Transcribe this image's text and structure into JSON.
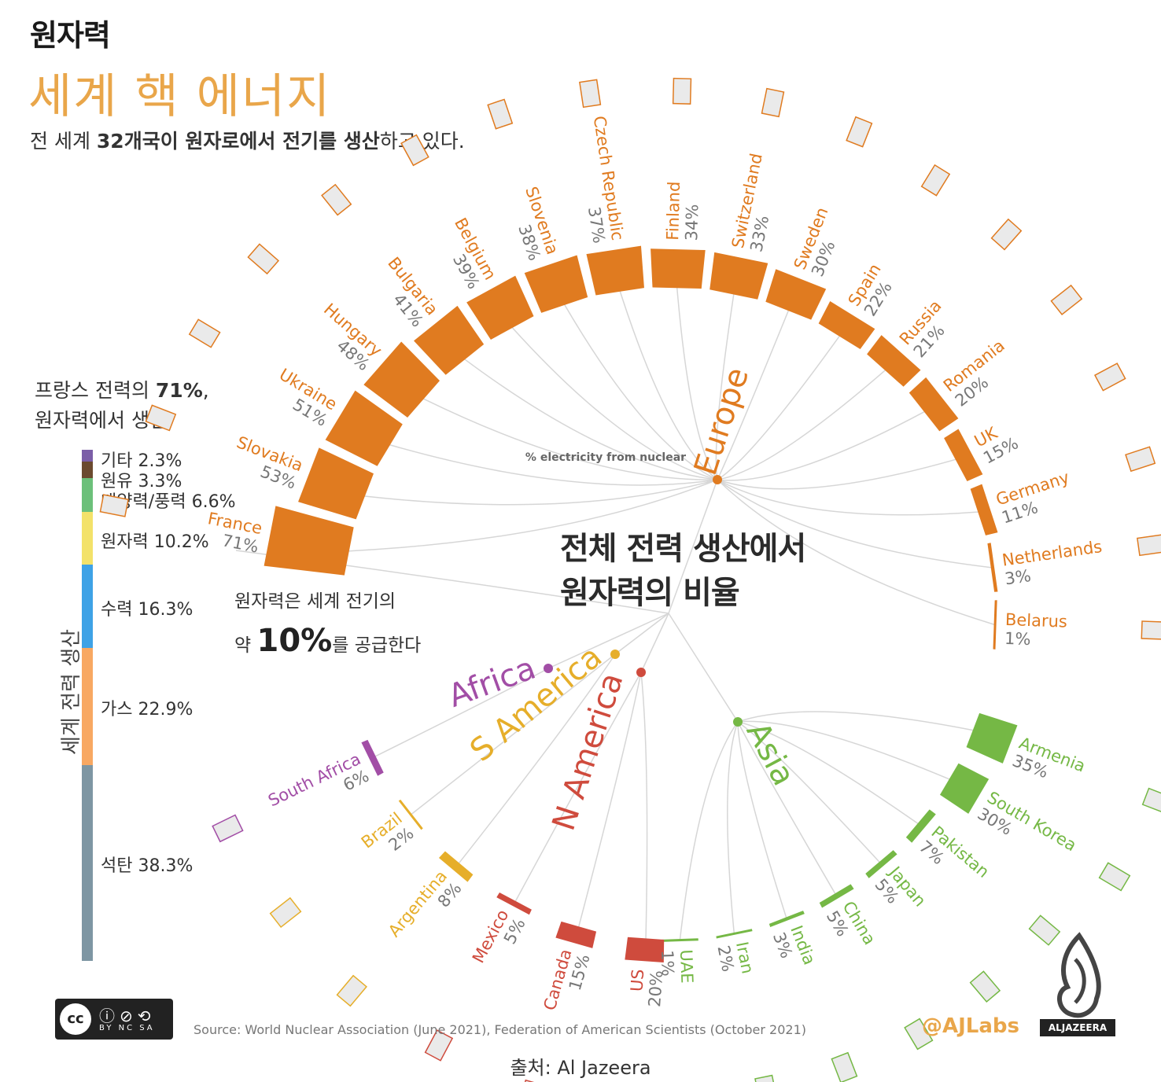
{
  "header": {
    "kicker": "원자력",
    "title": "세계 핵 에너지",
    "subtitle_pre": "전 세계 ",
    "subtitle_bold": "32개국이 원자로에서 전기를 생산",
    "subtitle_post": "하고 있다."
  },
  "france_note": {
    "line1_pre": "프랑스 전력의 ",
    "line1_bold": "71%",
    "line1_post": ",",
    "line2": "원자력에서 생산"
  },
  "energy_mix": {
    "label": "세계 전력 생산",
    "items": [
      {
        "label": "기타 2.3%",
        "value": 2.3,
        "color": "#7b5ea7"
      },
      {
        "label": "원유 3.3%",
        "value": 3.3,
        "color": "#6b4a2f"
      },
      {
        "label": "태양력/풍력 6.6%",
        "value": 6.6,
        "color": "#6cc07a"
      },
      {
        "label": "원자력 10.2%",
        "value": 10.2,
        "color": "#f3e26a"
      },
      {
        "label": "수력 16.3%",
        "value": 16.3,
        "color": "#3ea2e6"
      },
      {
        "label": "가스 22.9%",
        "value": 22.9,
        "color": "#f8a862"
      },
      {
        "label": "석탄 38.3%",
        "value": 38.3,
        "color": "#7e96a3"
      }
    ]
  },
  "supply_note": {
    "line1": "원자력은 세계 전기의",
    "prefix": "약 ",
    "big": "10%",
    "suffix": "를 공급한다"
  },
  "center_title": {
    "line1": "전체 전력 생산에서",
    "line2": "원자력의 비율"
  },
  "chart_data": {
    "type": "radial-bar",
    "axis_label": "% electricity from nuclear",
    "regions": [
      {
        "name": "Europe",
        "color": "#e07b20"
      },
      {
        "name": "Africa",
        "color": "#a24ea6"
      },
      {
        "name": "S America",
        "color": "#e6ae2a"
      },
      {
        "name": "N America",
        "color": "#cf4b3d"
      },
      {
        "name": "Asia",
        "color": "#75b845"
      }
    ],
    "countries": [
      {
        "name": "France",
        "value": 71,
        "label": "71%",
        "region": "Europe"
      },
      {
        "name": "Slovakia",
        "value": 53,
        "label": "53%",
        "region": "Europe"
      },
      {
        "name": "Ukraine",
        "value": 51,
        "label": "51%",
        "region": "Europe"
      },
      {
        "name": "Hungary",
        "value": 48,
        "label": "48%",
        "region": "Europe"
      },
      {
        "name": "Bulgaria",
        "value": 41,
        "label": "41%",
        "region": "Europe"
      },
      {
        "name": "Belgium",
        "value": 39,
        "label": "39%",
        "region": "Europe"
      },
      {
        "name": "Slovenia",
        "value": 38,
        "label": "38%",
        "region": "Europe"
      },
      {
        "name": "Czech Republic",
        "value": 37,
        "label": "37%",
        "region": "Europe"
      },
      {
        "name": "Finland",
        "value": 34,
        "label": "34%",
        "region": "Europe"
      },
      {
        "name": "Switzerland",
        "value": 33,
        "label": "33%",
        "region": "Europe"
      },
      {
        "name": "Sweden",
        "value": 30,
        "label": "30%",
        "region": "Europe"
      },
      {
        "name": "Spain",
        "value": 22,
        "label": "22%",
        "region": "Europe"
      },
      {
        "name": "Russia",
        "value": 21,
        "label": "21%",
        "region": "Europe"
      },
      {
        "name": "Romania",
        "value": 20,
        "label": "20%",
        "region": "Europe"
      },
      {
        "name": "UK",
        "value": 15,
        "label": "15%",
        "region": "Europe"
      },
      {
        "name": "Germany",
        "value": 11,
        "label": "11%",
        "region": "Europe"
      },
      {
        "name": "Netherlands",
        "value": 3,
        "label": "3%",
        "region": "Europe"
      },
      {
        "name": "Belarus",
        "value": 1,
        "label": "1%",
        "region": "Europe"
      },
      {
        "name": "Armenia",
        "value": 35,
        "label": "35%",
        "region": "Asia"
      },
      {
        "name": "South Korea",
        "value": 30,
        "label": "30%",
        "region": "Asia"
      },
      {
        "name": "Pakistan",
        "value": 7,
        "label": "7%",
        "region": "Asia"
      },
      {
        "name": "Japan",
        "value": 5,
        "label": "5%",
        "region": "Asia"
      },
      {
        "name": "China",
        "value": 5,
        "label": "5%",
        "region": "Asia"
      },
      {
        "name": "India",
        "value": 3,
        "label": "3%",
        "region": "Asia"
      },
      {
        "name": "Iran",
        "value": 2,
        "label": "2%",
        "region": "Asia"
      },
      {
        "name": "UAE",
        "value": 1,
        "label": "1%",
        "region": "Asia"
      },
      {
        "name": "US",
        "value": 20,
        "label": "20%",
        "region": "N America"
      },
      {
        "name": "Canada",
        "value": 15,
        "label": "15%",
        "region": "N America"
      },
      {
        "name": "Mexico",
        "value": 5,
        "label": "5%",
        "region": "N America"
      },
      {
        "name": "Argentina",
        "value": 8,
        "label": "8%",
        "region": "S America"
      },
      {
        "name": "Brazil",
        "value": 2,
        "label": "2%",
        "region": "S America"
      },
      {
        "name": "South Africa",
        "value": 6,
        "label": "6%",
        "region": "Africa"
      }
    ]
  },
  "footer": {
    "source": "Source: World Nuclear Association (June 2021), Federation of American Scientists (October 2021)",
    "handle": "@AJLabs",
    "credit": "출처: Al Jazeera",
    "license": "BY NC SA",
    "license_mark": "cc",
    "brand": "ALJAZEERA"
  }
}
